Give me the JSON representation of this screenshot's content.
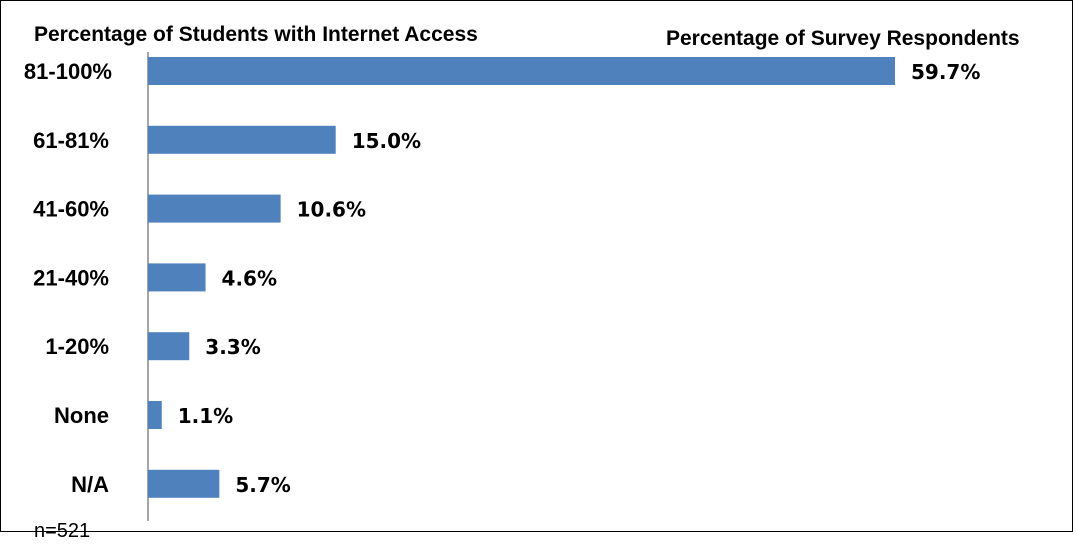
{
  "chart_data": {
    "type": "bar",
    "orientation": "horizontal",
    "category_axis_title": "Percentage of Students with Internet Access",
    "value_axis_title": "Percentage of Survey Respondents",
    "categories": [
      "81-100%",
      "61-81%",
      "41-60%",
      "21-40%",
      "1-20%",
      "None",
      "N/A"
    ],
    "values": [
      59.7,
      15.0,
      10.6,
      4.6,
      3.3,
      1.1,
      5.7
    ],
    "value_labels": [
      "59.7%",
      "15.0%",
      "10.6%",
      "4.6%",
      "3.3%",
      "1.1%",
      "5.7%"
    ],
    "xlim": [
      0,
      60
    ],
    "grid": false,
    "legend": "none",
    "bar_color": "#4f81bd",
    "note": "n=521"
  }
}
